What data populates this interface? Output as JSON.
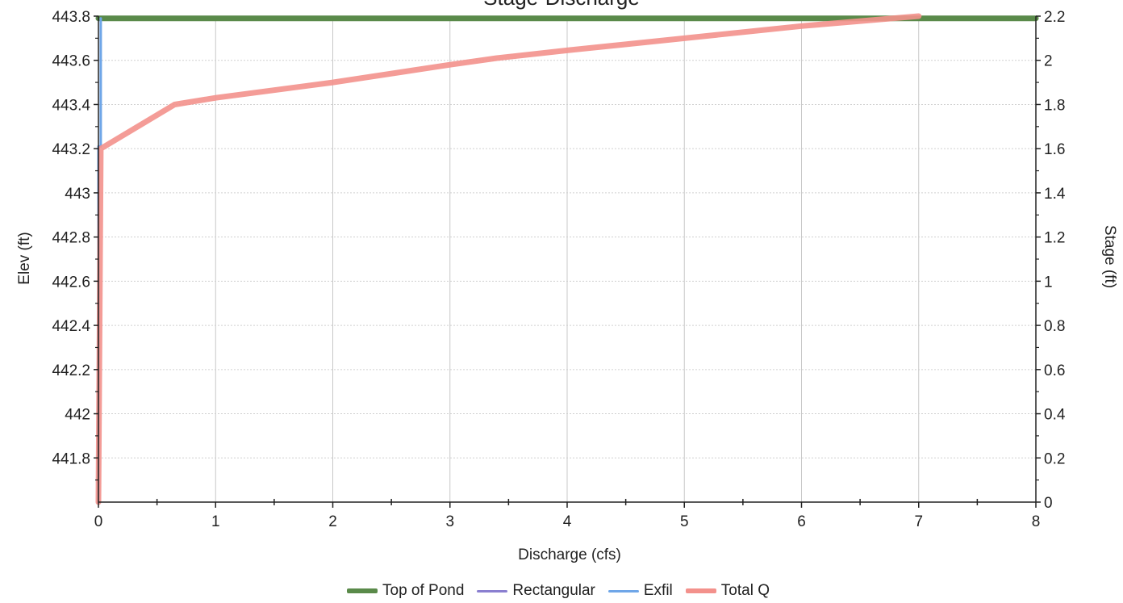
{
  "chart_data": {
    "type": "line",
    "title": "Stage-Discharge",
    "xlabel": "Discharge (cfs)",
    "ylabel_left": "Elev (ft)",
    "ylabel_right": "Stage (ft)",
    "xlim": [
      0,
      8
    ],
    "ylim_left": [
      441.6,
      443.8
    ],
    "ylim_right": [
      0,
      2.2
    ],
    "x_ticks": [
      "0",
      "1",
      "2",
      "3",
      "4",
      "5",
      "6",
      "7",
      "8"
    ],
    "y_left_ticks": [
      "441.8",
      "442",
      "442.2",
      "442.4",
      "442.6",
      "442.8",
      "443",
      "443.2",
      "443.4",
      "443.6",
      "443.8"
    ],
    "y_right_ticks": [
      "0",
      "0.2",
      "0.4",
      "0.6",
      "0.8",
      "1",
      "1.2",
      "1.4",
      "1.6",
      "1.8",
      "2",
      "2.2"
    ],
    "grid": true,
    "legend_position": "bottom",
    "series": [
      {
        "name": "Top of Pond",
        "color": "#5a8a4a",
        "width": 7,
        "points": [
          [
            0,
            443.79
          ],
          [
            8,
            443.79
          ]
        ]
      },
      {
        "name": "Rectangular",
        "color": "#8a7fd0",
        "width": 3,
        "points": []
      },
      {
        "name": "Exfil",
        "color": "#6fa6e8",
        "width": 3,
        "points": [
          [
            0,
            441.6
          ],
          [
            0.0,
            443.21
          ],
          [
            0.02,
            443.21
          ],
          [
            0.02,
            443.79
          ]
        ]
      },
      {
        "name": "Total Q",
        "color": "#f3918c",
        "width": 7,
        "points": [
          [
            0,
            441.6
          ],
          [
            0.02,
            443.2
          ],
          [
            0.65,
            443.4
          ],
          [
            1.0,
            443.43
          ],
          [
            2.0,
            443.5
          ],
          [
            3.0,
            443.58
          ],
          [
            3.4,
            443.61
          ],
          [
            4.0,
            443.645
          ],
          [
            5.0,
            443.7
          ],
          [
            6.0,
            443.755
          ],
          [
            7.0,
            443.8
          ]
        ]
      }
    ]
  }
}
